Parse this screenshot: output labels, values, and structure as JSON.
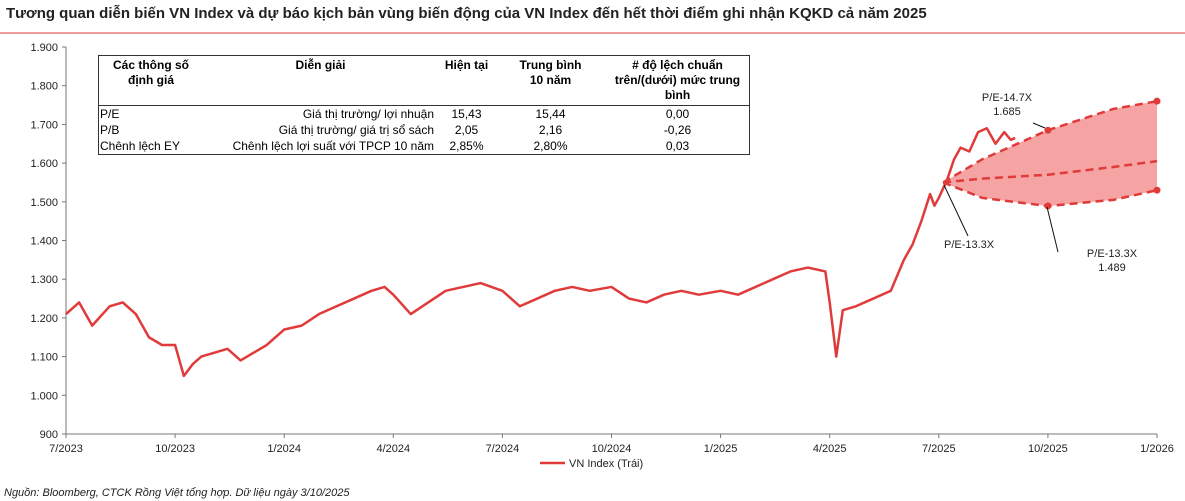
{
  "chart_data": {
    "type": "line",
    "title": "Tương quan diễn biến VN Index và dự báo kịch bản vùng biến động của VN Index đến hết thời điểm ghi nhận KQKD cả năm 2025",
    "source": "Nguồn: Bloomberg, CTCK Rồng Việt tổng hợp. Dữ liệu ngày 3/10/2025",
    "xlim": [
      2023.5,
      2026.0
    ],
    "xticks": [
      {
        "value": 2023.5,
        "label": "7/2023"
      },
      {
        "value": 2023.75,
        "label": "10/2023"
      },
      {
        "value": 2024.0,
        "label": "1/2024"
      },
      {
        "value": 2024.25,
        "label": "4/2024"
      },
      {
        "value": 2024.5,
        "label": "7/2024"
      },
      {
        "value": 2024.75,
        "label": "10/2024"
      },
      {
        "value": 2025.0,
        "label": "1/2025"
      },
      {
        "value": 2025.25,
        "label": "4/2025"
      },
      {
        "value": 2025.5,
        "label": "7/2025"
      },
      {
        "value": 2025.75,
        "label": "10/2025"
      },
      {
        "value": 2026.0,
        "label": "1/2026"
      }
    ],
    "ylim": [
      900,
      1900
    ],
    "yticks": [
      900,
      {
        "value": 1000,
        "label": "1.000"
      },
      {
        "value": 1100,
        "label": "1.100"
      },
      {
        "value": 1200,
        "label": "1.200"
      },
      {
        "value": 1300,
        "label": "1.300"
      },
      {
        "value": 1400,
        "label": "1.400"
      },
      {
        "value": 1500,
        "label": "1.500"
      },
      {
        "value": 1600,
        "label": "1.600"
      },
      {
        "value": 1700,
        "label": "1.700"
      },
      {
        "value": 1800,
        "label": "1.800"
      },
      {
        "value": 1900,
        "label": "1.900"
      }
    ],
    "grid": false,
    "legend": "bottom",
    "series": [
      {
        "name": "VN Index (Trái)",
        "color": "#e03a3a",
        "x": [
          2023.5,
          2023.53,
          2023.56,
          2023.6,
          2023.63,
          2023.66,
          2023.69,
          2023.72,
          2023.75,
          2023.77,
          2023.79,
          2023.81,
          2023.84,
          2023.87,
          2023.9,
          2023.93,
          2023.96,
          2024.0,
          2024.04,
          2024.08,
          2024.12,
          2024.16,
          2024.2,
          2024.23,
          2024.25,
          2024.29,
          2024.33,
          2024.37,
          2024.41,
          2024.45,
          2024.5,
          2024.54,
          2024.58,
          2024.62,
          2024.66,
          2024.7,
          2024.75,
          2024.79,
          2024.83,
          2024.87,
          2024.91,
          2024.95,
          2025.0,
          2025.04,
          2025.08,
          2025.12,
          2025.16,
          2025.2,
          2025.24,
          2025.25,
          2025.265,
          2025.28,
          2025.31,
          2025.35,
          2025.39,
          2025.42,
          2025.44,
          2025.46,
          2025.48,
          2025.49,
          2025.5,
          2025.52,
          2025.535,
          2025.55,
          2025.57,
          2025.59,
          2025.61,
          2025.63,
          2025.65,
          2025.665,
          2025.675
        ],
        "values": [
          1210,
          1240,
          1180,
          1230,
          1240,
          1210,
          1150,
          1130,
          1130,
          1050,
          1080,
          1100,
          1110,
          1120,
          1090,
          1110,
          1130,
          1170,
          1180,
          1210,
          1230,
          1250,
          1270,
          1280,
          1260,
          1210,
          1240,
          1270,
          1280,
          1290,
          1270,
          1230,
          1250,
          1270,
          1280,
          1270,
          1280,
          1250,
          1240,
          1260,
          1270,
          1260,
          1270,
          1260,
          1280,
          1300,
          1320,
          1330,
          1320,
          1240,
          1100,
          1220,
          1230,
          1250,
          1270,
          1350,
          1390,
          1450,
          1520,
          1490,
          1510,
          1560,
          1610,
          1640,
          1630,
          1680,
          1690,
          1650,
          1680,
          1660,
          1665
        ]
      }
    ],
    "projections": {
      "color": "#e03a3a",
      "fill": "#f6a3a3",
      "x": [
        2025.51,
        2025.6,
        2025.75,
        2025.9,
        2026.0
      ],
      "upper": [
        1550,
        1610,
        1685,
        1740,
        1760
      ],
      "middle": [
        1550,
        1560,
        1570,
        1590,
        1605
      ],
      "lower": [
        1550,
        1510,
        1489,
        1505,
        1530
      ]
    },
    "annotations": [
      {
        "lines": [
          "P/E-14.7X",
          "1.685"
        ]
      },
      {
        "lines": [
          "P/E-13.3X"
        ]
      },
      {
        "lines": [
          "P/E-13.3X",
          "1.489"
        ]
      }
    ]
  },
  "table": {
    "header": [
      [
        "Các thông số",
        "định giá"
      ],
      [
        "Diễn  giải"
      ],
      [
        "Hiện tại"
      ],
      [
        "Trung bình",
        "10 năm"
      ],
      [
        "# độ lệch chuẩn",
        "trên/(dưới) mức trung",
        "bình"
      ]
    ],
    "rows": [
      [
        "P/E",
        "Giá thị trường/ lợi nhuận",
        "15,43",
        "15,44",
        "0,00"
      ],
      [
        "P/B",
        "Giá thị trường/ giá trị sổ sách",
        "2,05",
        "2,16",
        "-0,26"
      ],
      [
        "Chênh lệch EY",
        "Chênh lệch lợi suất với TPCP 10 năm",
        "2,85%",
        "2,80%",
        "0,03"
      ]
    ]
  }
}
